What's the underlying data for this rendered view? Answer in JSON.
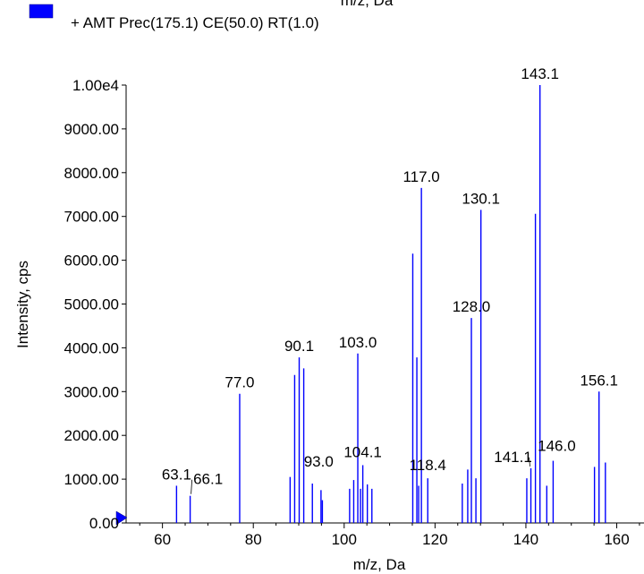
{
  "chart_data": {
    "type": "bar",
    "top_axis_fragment": "m/z, Da",
    "legend": {
      "label": "+ AMT Prec(175.1) CE(50.0) RT(1.0)",
      "color": "#0000ff",
      "placement": "top-left"
    },
    "xlabel": "m/z, Da",
    "ylabel": "Intensity, cps",
    "xlim": [
      52.0,
      166.0
    ],
    "ylim": [
      0,
      10000
    ],
    "x_ticks": [
      60,
      80,
      100,
      120,
      140,
      160
    ],
    "x_tick_labels": [
      "60",
      "80",
      "100",
      "120",
      "140",
      "160"
    ],
    "y_ticks": [
      0,
      1000,
      2000,
      3000,
      4000,
      5000,
      6000,
      7000,
      8000,
      9000,
      10000
    ],
    "y_tick_labels": [
      "0.00",
      "1000.00",
      "2000.00",
      "3000.00",
      "4000.00",
      "5000.00",
      "6000.00",
      "7000.00",
      "8000.00",
      "9000.00",
      "1.00e4"
    ],
    "series": [
      {
        "color": "#0000ff",
        "peaks": [
          {
            "x": 63.1,
            "y": 850
          },
          {
            "x": 66.1,
            "y": 620
          },
          {
            "x": 77.0,
            "y": 2950
          },
          {
            "x": 88.1,
            "y": 1050
          },
          {
            "x": 89.1,
            "y": 3380
          },
          {
            "x": 90.1,
            "y": 3780
          },
          {
            "x": 91.1,
            "y": 3530
          },
          {
            "x": 93.0,
            "y": 900
          },
          {
            "x": 94.9,
            "y": 750
          },
          {
            "x": 95.2,
            "y": 520
          },
          {
            "x": 101.2,
            "y": 780
          },
          {
            "x": 102.1,
            "y": 980
          },
          {
            "x": 103.0,
            "y": 3870
          },
          {
            "x": 103.6,
            "y": 780
          },
          {
            "x": 104.1,
            "y": 1320
          },
          {
            "x": 105.1,
            "y": 880
          },
          {
            "x": 106.1,
            "y": 780
          },
          {
            "x": 115.1,
            "y": 6150
          },
          {
            "x": 116.0,
            "y": 3780
          },
          {
            "x": 116.4,
            "y": 850
          },
          {
            "x": 117.0,
            "y": 7650
          },
          {
            "x": 118.4,
            "y": 1020
          },
          {
            "x": 126.0,
            "y": 900
          },
          {
            "x": 127.2,
            "y": 1220
          },
          {
            "x": 128.0,
            "y": 4680
          },
          {
            "x": 129.0,
            "y": 1020
          },
          {
            "x": 130.1,
            "y": 7150
          },
          {
            "x": 140.2,
            "y": 1020
          },
          {
            "x": 141.1,
            "y": 1250
          },
          {
            "x": 142.1,
            "y": 7060
          },
          {
            "x": 143.1,
            "y": 10000
          },
          {
            "x": 144.6,
            "y": 850
          },
          {
            "x": 146.0,
            "y": 1420
          },
          {
            "x": 155.1,
            "y": 1280
          },
          {
            "x": 156.1,
            "y": 3000
          },
          {
            "x": 157.5,
            "y": 1380
          }
        ]
      }
    ],
    "peak_labels": [
      {
        "text": "63.1",
        "x": 63.1
      },
      {
        "text": "66.1",
        "x": 66.1
      },
      {
        "text": "77.0",
        "x": 77.0
      },
      {
        "text": "90.1",
        "x": 90.1
      },
      {
        "text": "93.0",
        "x": 93.0
      },
      {
        "text": "103.0",
        "x": 103.0
      },
      {
        "text": "104.1",
        "x": 104.1
      },
      {
        "text": "117.0",
        "x": 117.0
      },
      {
        "text": "118.4",
        "x": 118.4
      },
      {
        "text": "128.0",
        "x": 128.0
      },
      {
        "text": "130.1",
        "x": 130.1
      },
      {
        "text": "141.1",
        "x": 141.1
      },
      {
        "text": "143.1",
        "x": 143.1
      },
      {
        "text": "146.0",
        "x": 146.0
      },
      {
        "text": "156.1",
        "x": 156.1
      }
    ]
  }
}
